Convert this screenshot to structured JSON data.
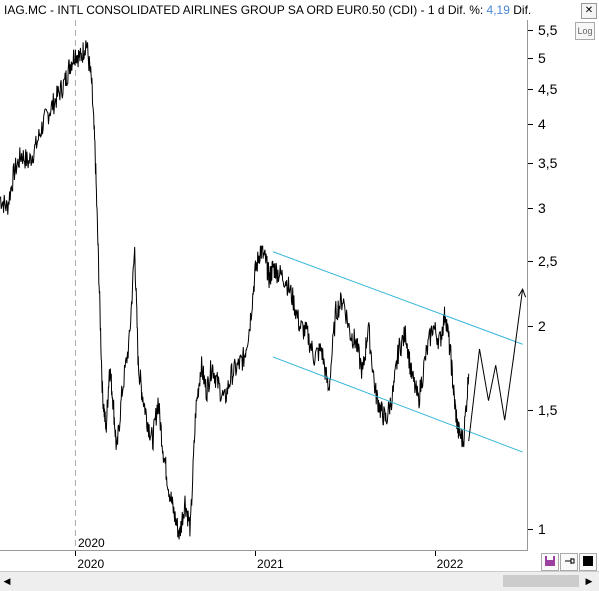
{
  "window": {
    "title_prefix": "IAG.MC - INTL CONSOLIDATED AIRLINES GROUP SA ORD EUR0.50 (CDI)  -  1 d  Dif. %: ",
    "pct_change": "4,19",
    "title_suffix": "  Dif.",
    "close_label": "✕"
  },
  "toolbar": {
    "log_label": "Log",
    "save_icon": "save-icon",
    "pin_icon": "pin-icon",
    "color_icon": "color-swatch-icon"
  },
  "colors": {
    "price": "#000000",
    "channel": "#33b5d8",
    "accent_pct": "#4a86d4",
    "pen": "#000000"
  },
  "timeline": {
    "year_marker": "2020"
  },
  "chart_data": {
    "type": "line",
    "title": "IAG.MC - INTL CONSOLIDATED AIRLINES GROUP SA ORD EUR0.50 (CDI)",
    "xlabel": "",
    "ylabel": "",
    "log_scale": true,
    "ylim": [
      0.93,
      5.7
    ],
    "x_tick_labels": [
      "2020",
      "2021",
      "2022"
    ],
    "y_tick_labels": [
      "1",
      "1,5",
      "2",
      "2,5",
      "3",
      "3,5",
      "4",
      "4,5",
      "5",
      "5,5"
    ],
    "y_tick_values": [
      1,
      1.5,
      2,
      2.5,
      3,
      3.5,
      4,
      4.5,
      5,
      5.5
    ],
    "x_ticks_t": [
      2020.0,
      2021.0,
      2022.0
    ],
    "xlim": [
      2019.58,
      2022.52
    ],
    "series": [
      {
        "values_desc": "daily close",
        "t": [
          2019.58,
          2019.62,
          2019.66,
          2019.7,
          2019.74,
          2019.78,
          2019.82,
          2019.86,
          2019.9,
          2019.94,
          2019.97,
          2020.0,
          2020.03,
          2020.06,
          2020.09,
          2020.11,
          2020.13,
          2020.15,
          2020.17,
          2020.19,
          2020.21,
          2020.23,
          2020.26,
          2020.3,
          2020.33,
          2020.35,
          2020.37,
          2020.4,
          2020.43,
          2020.46,
          2020.49,
          2020.52,
          2020.55,
          2020.58,
          2020.61,
          2020.64,
          2020.67,
          2020.7,
          2020.73,
          2020.76,
          2020.79,
          2020.83,
          2020.87,
          2020.91,
          2020.94,
          2020.97,
          2021.0,
          2021.03,
          2021.06,
          2021.08,
          2021.1,
          2021.13,
          2021.17,
          2021.21,
          2021.25,
          2021.29,
          2021.33,
          2021.37,
          2021.41,
          2021.45,
          2021.49,
          2021.53,
          2021.56,
          2021.6,
          2021.63,
          2021.67,
          2021.7,
          2021.73,
          2021.77,
          2021.8,
          2021.84,
          2021.87,
          2021.91,
          2021.95,
          2021.99,
          2022.03,
          2022.06,
          2022.09,
          2022.11,
          2022.13,
          2022.16,
          2022.19
        ],
        "values": [
          3.1,
          3.0,
          3.4,
          3.6,
          3.5,
          3.7,
          4.0,
          4.2,
          4.4,
          4.6,
          4.9,
          5.1,
          5.0,
          5.3,
          4.6,
          3.6,
          2.4,
          1.6,
          1.4,
          1.75,
          1.55,
          1.3,
          1.6,
          1.9,
          2.6,
          1.75,
          1.6,
          1.45,
          1.35,
          1.55,
          1.3,
          1.15,
          1.05,
          0.98,
          1.1,
          1.0,
          1.5,
          1.75,
          1.6,
          1.75,
          1.65,
          1.55,
          1.7,
          1.75,
          1.8,
          2.0,
          2.4,
          2.6,
          2.5,
          2.35,
          2.45,
          2.4,
          2.35,
          2.2,
          2.0,
          1.95,
          1.8,
          1.85,
          1.6,
          2.1,
          2.2,
          1.95,
          1.9,
          1.7,
          2.0,
          1.6,
          1.5,
          1.45,
          1.6,
          1.85,
          1.95,
          1.7,
          1.55,
          1.8,
          2.0,
          1.9,
          2.1,
          1.8,
          1.55,
          1.4,
          1.35,
          1.7
        ]
      }
    ],
    "channel_lines": [
      {
        "t": [
          2021.1,
          2022.49
        ],
        "values": [
          2.58,
          1.88
        ]
      },
      {
        "t": [
          2021.1,
          2022.49
        ],
        "values": [
          1.8,
          1.3
        ]
      }
    ],
    "projection": {
      "t": [
        2022.19,
        2022.25,
        2022.3,
        2022.34,
        2022.39,
        2022.44,
        2022.49
      ],
      "values": [
        1.35,
        1.85,
        1.55,
        1.75,
        1.45,
        1.8,
        2.27
      ]
    }
  }
}
